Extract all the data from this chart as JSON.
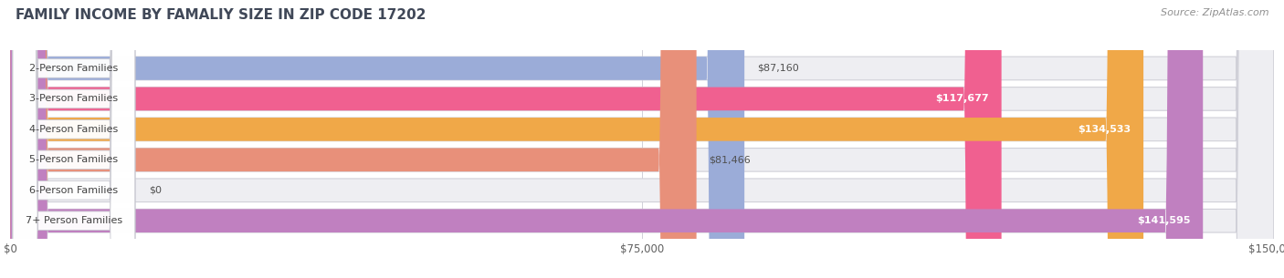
{
  "title": "FAMILY INCOME BY FAMALIY SIZE IN ZIP CODE 17202",
  "source": "Source: ZipAtlas.com",
  "categories": [
    "2-Person Families",
    "3-Person Families",
    "4-Person Families",
    "5-Person Families",
    "6-Person Families",
    "7+ Person Families"
  ],
  "values": [
    87160,
    117677,
    134533,
    81466,
    0,
    141595
  ],
  "labels": [
    "$87,160",
    "$117,677",
    "$134,533",
    "$81,466",
    "$0",
    "$141,595"
  ],
  "bar_colors": [
    "#9bacd8",
    "#f06090",
    "#f0a848",
    "#e8907a",
    "#a8c4e4",
    "#c080c0"
  ],
  "xlim": [
    0,
    150000
  ],
  "xticks": [
    0,
    75000,
    150000
  ],
  "xticklabels": [
    "$0",
    "$75,000",
    "$150,000"
  ],
  "background_color": "#f2f2f4",
  "bar_row_bg": "#e8e8ec",
  "bar_row_light": "#f0f0f4",
  "label_inside": [
    false,
    true,
    true,
    false,
    false,
    true
  ],
  "title_color": "#404858",
  "source_color": "#909090",
  "title_fontsize": 11,
  "source_fontsize": 8,
  "value_label_fontsize": 8,
  "cat_label_fontsize": 8
}
